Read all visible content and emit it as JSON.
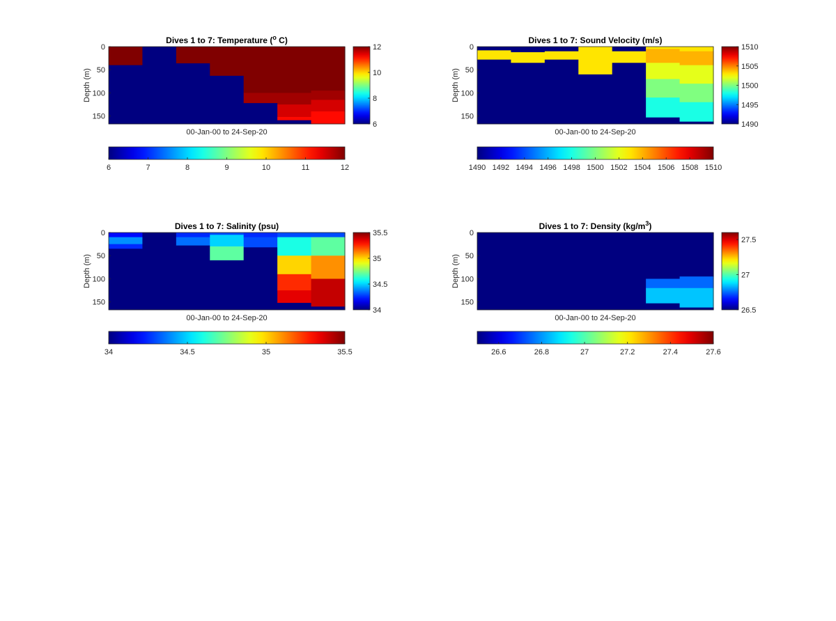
{
  "chart_data": [
    {
      "type": "heatmap",
      "title": "Dives 1 to 7: Temperature (",
      "title_sup": "o",
      "title_after": " C)",
      "xlabel": "00-Jan-00 to 24-Sep-20",
      "ylabel": "Depth (m)",
      "y_ticks": [
        "0",
        "50",
        "100",
        "150"
      ],
      "ylim": [
        0,
        167
      ],
      "clim": [
        6,
        12
      ],
      "colorbar_ticks": [
        "6",
        "8",
        "10",
        "12"
      ],
      "h_colorbar_ticks": [
        "6",
        "7",
        "8",
        "9",
        "10",
        "11",
        "12"
      ],
      "columns": [
        [
          [
            0,
            40,
            12
          ],
          [
            40,
            167,
            6
          ]
        ],
        [
          [
            0,
            167,
            6
          ]
        ],
        [
          [
            0,
            36,
            12
          ],
          [
            36,
            167,
            6
          ]
        ],
        [
          [
            0,
            63,
            12
          ],
          [
            63,
            167,
            6
          ]
        ],
        [
          [
            0,
            100,
            12
          ],
          [
            100,
            122,
            11.8
          ],
          [
            122,
            167,
            6
          ]
        ],
        [
          [
            0,
            100,
            12
          ],
          [
            100,
            125,
            11.8
          ],
          [
            125,
            152,
            11.5
          ],
          [
            152,
            159,
            11.2
          ],
          [
            159,
            167,
            6
          ]
        ],
        [
          [
            0,
            95,
            12
          ],
          [
            95,
            115,
            11.8
          ],
          [
            115,
            140,
            11.5
          ],
          [
            140,
            167,
            11.2
          ]
        ]
      ]
    },
    {
      "type": "heatmap",
      "title": "Dives 1 to 7: Sound Velocity (m/s)",
      "xlabel": "00-Jan-00 to 24-Sep-20",
      "ylabel": "Depth (m)",
      "y_ticks": [
        "0",
        "50",
        "100",
        "150"
      ],
      "ylim": [
        0,
        167
      ],
      "clim": [
        1490,
        1510
      ],
      "colorbar_ticks": [
        "1490",
        "1495",
        "1500",
        "1505",
        "1510"
      ],
      "h_colorbar_ticks": [
        "1490",
        "1492",
        "1494",
        "1496",
        "1498",
        "1500",
        "1502",
        "1504",
        "1506",
        "1508",
        "1510"
      ],
      "columns": [
        [
          [
            0,
            8,
            1490
          ],
          [
            8,
            28,
            1503
          ],
          [
            28,
            167,
            1490
          ]
        ],
        [
          [
            0,
            12,
            1490
          ],
          [
            12,
            35,
            1503
          ],
          [
            35,
            167,
            1490
          ]
        ],
        [
          [
            0,
            10,
            1490
          ],
          [
            10,
            28,
            1503
          ],
          [
            28,
            167,
            1490
          ]
        ],
        [
          [
            0,
            0,
            1490
          ],
          [
            0,
            60,
            1503
          ],
          [
            60,
            167,
            1490
          ]
        ],
        [
          [
            0,
            10,
            1490
          ],
          [
            10,
            35,
            1503
          ],
          [
            35,
            167,
            1490
          ]
        ],
        [
          [
            0,
            5,
            1503
          ],
          [
            5,
            35,
            1504
          ],
          [
            35,
            70,
            1502
          ],
          [
            70,
            110,
            1500
          ],
          [
            110,
            153,
            1498
          ],
          [
            153,
            167,
            1490
          ]
        ],
        [
          [
            0,
            10,
            1503
          ],
          [
            10,
            40,
            1504
          ],
          [
            40,
            80,
            1502
          ],
          [
            80,
            120,
            1500
          ],
          [
            120,
            162,
            1498
          ],
          [
            162,
            167,
            1490
          ]
        ]
      ]
    },
    {
      "type": "heatmap",
      "title": "Dives 1 to 7: Salinity (psu)",
      "xlabel": "00-Jan-00 to 24-Sep-20",
      "ylabel": "Depth (m)",
      "y_ticks": [
        "0",
        "50",
        "100",
        "150"
      ],
      "ylim": [
        0,
        167
      ],
      "clim": [
        34,
        35.5
      ],
      "colorbar_ticks": [
        "34",
        "34.5",
        "35",
        "35.5"
      ],
      "h_colorbar_ticks": [
        "34",
        "34.5",
        "35",
        "35.5"
      ],
      "columns": [
        [
          [
            0,
            10,
            34.2
          ],
          [
            10,
            25,
            34.4
          ],
          [
            25,
            35,
            34.25
          ],
          [
            35,
            167,
            34
          ]
        ],
        [
          [
            0,
            167,
            34
          ]
        ],
        [
          [
            0,
            10,
            34.25
          ],
          [
            10,
            28,
            34.35
          ],
          [
            28,
            167,
            34
          ]
        ],
        [
          [
            0,
            5,
            34.3
          ],
          [
            5,
            30,
            34.5
          ],
          [
            30,
            60,
            34.7
          ],
          [
            60,
            167,
            34
          ]
        ],
        [
          [
            0,
            10,
            34.25
          ],
          [
            10,
            32,
            34.3
          ],
          [
            32,
            167,
            34
          ]
        ],
        [
          [
            0,
            10,
            34.3
          ],
          [
            10,
            50,
            34.6
          ],
          [
            50,
            90,
            35
          ],
          [
            90,
            125,
            35.25
          ],
          [
            125,
            152,
            35.35
          ],
          [
            152,
            167,
            34
          ]
        ],
        [
          [
            0,
            10,
            34.3
          ],
          [
            10,
            50,
            34.7
          ],
          [
            50,
            100,
            35.1
          ],
          [
            100,
            160,
            35.4
          ],
          [
            160,
            167,
            34
          ]
        ]
      ]
    },
    {
      "type": "heatmap",
      "title": "Dives 1 to 7: Density (kg/m",
      "title_sup": "3",
      "title_after": ")",
      "xlabel": "00-Jan-00 to 24-Sep-20",
      "ylabel": "Depth (m)",
      "y_ticks": [
        "0",
        "50",
        "100",
        "150"
      ],
      "ylim": [
        0,
        167
      ],
      "clim": [
        26.5,
        27.6
      ],
      "colorbar_ticks": [
        "26.5",
        "27",
        "27.5"
      ],
      "h_colorbar_ticks": [
        "26.6",
        "26.8",
        "27",
        "27.2",
        "27.4",
        "27.6"
      ],
      "columns": [
        [
          [
            0,
            167,
            26.5
          ]
        ],
        [
          [
            0,
            167,
            26.5
          ]
        ],
        [
          [
            0,
            167,
            26.5
          ]
        ],
        [
          [
            0,
            167,
            26.5
          ]
        ],
        [
          [
            0,
            167,
            26.5
          ]
        ],
        [
          [
            0,
            100,
            26.5
          ],
          [
            100,
            120,
            26.75
          ],
          [
            120,
            153,
            26.85
          ],
          [
            153,
            167,
            26.5
          ]
        ],
        [
          [
            0,
            95,
            26.5
          ],
          [
            95,
            120,
            26.75
          ],
          [
            120,
            162,
            26.85
          ],
          [
            162,
            167,
            26.5
          ]
        ]
      ]
    }
  ]
}
